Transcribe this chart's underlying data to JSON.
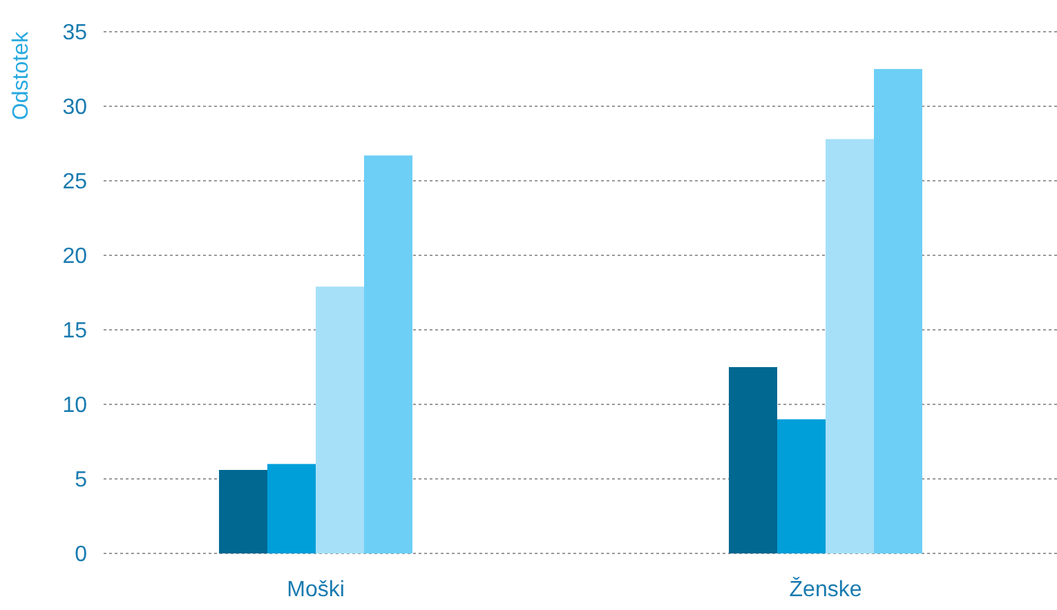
{
  "chart_data": {
    "type": "bar",
    "ylabel": "Odstotek",
    "categories": [
      "Moški",
      "Ženske"
    ],
    "series": [
      {
        "color": "#006891",
        "values": [
          5.6,
          12.5
        ]
      },
      {
        "color": "#009fda",
        "values": [
          6.0,
          9.0
        ]
      },
      {
        "color": "#a6e0f8",
        "values": [
          17.9,
          27.8
        ]
      },
      {
        "color": "#6dcff6",
        "values": [
          26.7,
          32.5
        ]
      }
    ],
    "ylim": [
      0,
      35
    ],
    "yticks": [
      0,
      5,
      10,
      15,
      20,
      25,
      30,
      35
    ],
    "grid": "y"
  }
}
